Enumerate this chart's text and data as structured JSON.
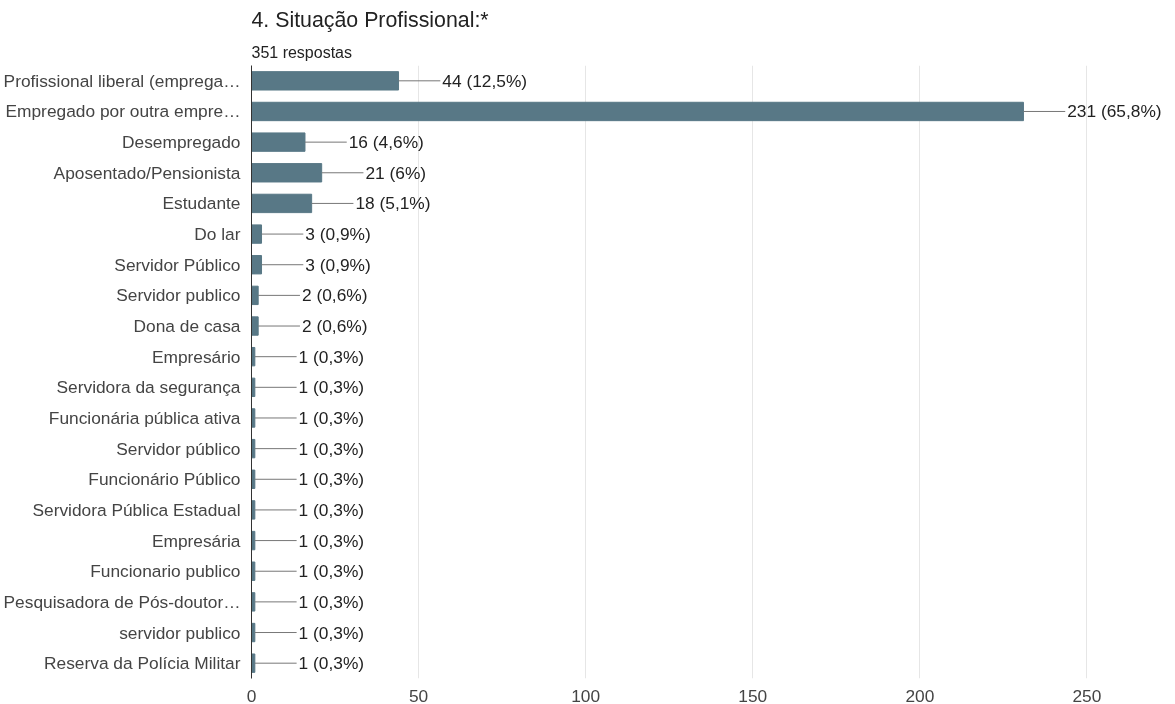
{
  "chart_data": {
    "type": "bar",
    "orientation": "horizontal",
    "title": "4. Situação Profissional:*",
    "subtitle": "351 respostas",
    "categories": [
      "Profissional liberal (emprega…",
      "Empregado por outra empre…",
      "Desempregado",
      "Aposentado/Pensionista",
      "Estudante",
      "Do lar",
      "Servidor Público",
      "Servidor publico",
      "Dona de casa",
      "Empresário",
      "Servidora da segurança",
      "Funcionária pública ativa",
      "Servidor público",
      "Funcionário Público",
      "Servidora Pública Estadual",
      "Empresária",
      "Funcionario publico",
      "Pesquisadora de Pós-doutor…",
      "servidor publico",
      "Reserva da Polícia Militar"
    ],
    "values": [
      44,
      231,
      16,
      21,
      18,
      3,
      3,
      2,
      2,
      1,
      1,
      1,
      1,
      1,
      1,
      1,
      1,
      1,
      1,
      1
    ],
    "value_labels": [
      "44 (12,5%)",
      "231 (65,8%)",
      "16 (4,6%)",
      "21 (6%)",
      "18 (5,1%)",
      "3 (0,9%)",
      "3 (0,9%)",
      "2 (0,6%)",
      "2 (0,6%)",
      "1 (0,3%)",
      "1 (0,3%)",
      "1 (0,3%)",
      "1 (0,3%)",
      "1 (0,3%)",
      "1 (0,3%)",
      "1 (0,3%)",
      "1 (0,3%)",
      "1 (0,3%)",
      "1 (0,3%)",
      "1 (0,3%)"
    ],
    "color": "#587886",
    "xlim": [
      0,
      250
    ],
    "xticks": [
      0,
      50,
      100,
      150,
      200,
      250
    ],
    "grid": "x"
  }
}
